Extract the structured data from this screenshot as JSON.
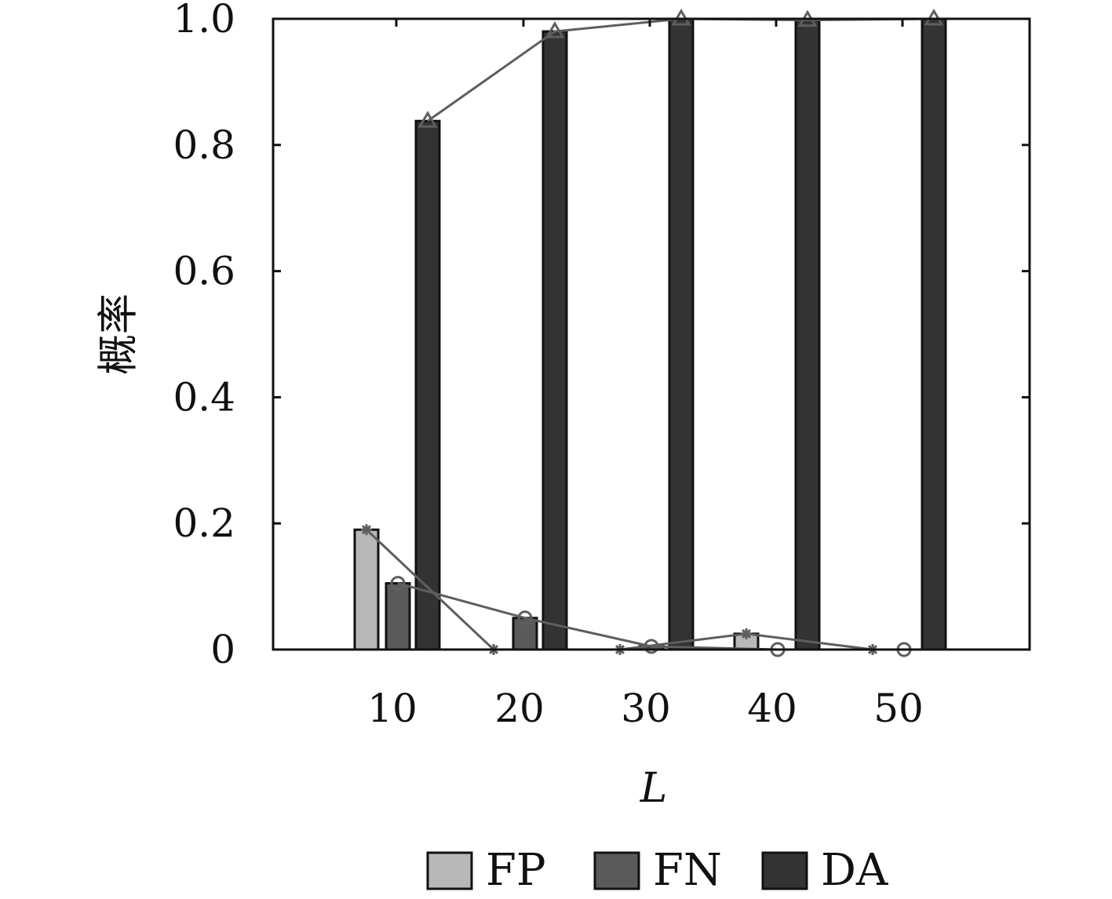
{
  "chart_data": {
    "type": "bar",
    "categories": [
      "10",
      "20",
      "30",
      "40",
      "50"
    ],
    "xlabel": "L",
    "ylabel": "概率",
    "ylim": [
      0,
      1.0
    ],
    "yticks": [
      0,
      0.2,
      0.4,
      0.6,
      0.8,
      1.0
    ],
    "ytick_labels": [
      "0",
      "0.2",
      "0.4",
      "0.6",
      "0.8",
      "1.0"
    ],
    "grid": false,
    "legend": {
      "placement": "bottom"
    },
    "series": [
      {
        "name": "FP",
        "color": "#b8b8b8",
        "values": [
          0.19,
          0.0,
          0.0,
          0.025,
          0.0
        ],
        "line_marker": "asterisk"
      },
      {
        "name": "FN",
        "color": "#5a5a5a",
        "values": [
          0.105,
          0.05,
          0.005,
          0.0,
          0.0
        ],
        "line_marker": "circle"
      },
      {
        "name": "DA",
        "color": "#333333",
        "values": [
          0.838,
          0.98,
          1.0,
          0.998,
          1.0
        ],
        "line_marker": "triangle"
      }
    ],
    "line_color": "#5e5e5e"
  }
}
